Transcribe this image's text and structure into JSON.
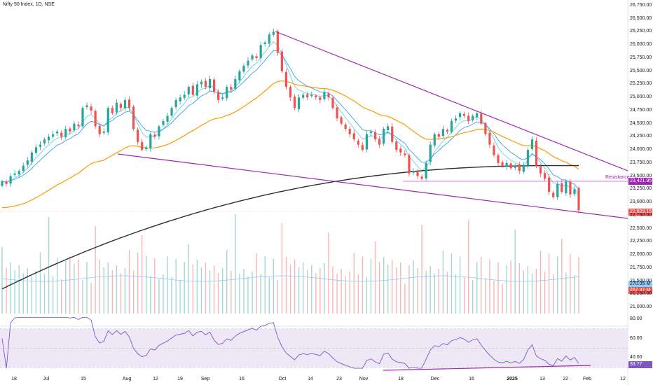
{
  "header": {
    "title": "Nifty 50 Index, 1D, NSE"
  },
  "labels": {
    "resistance": "Resistance"
  },
  "price_tags": {
    "resistance": "23,421.95",
    "last": "22,829.15",
    "vol_ma": "270.05 M",
    "vol": "257.37 M",
    "rsi": "33.77"
  },
  "colors": {
    "up": "#26a69a",
    "down": "#ef5350",
    "trend": "#9c27b0",
    "ema_fast": "#2196f3",
    "ema_slow": "#ff9800",
    "sma200": "#2a2e39",
    "rsi": "#7e57c2",
    "rsi_band": "#ede7f6",
    "resistance": "#e040fb"
  },
  "chart_data": [
    {
      "type": "candlestick",
      "title": "Nifty 50 Index, 1D, NSE",
      "y_ticks": [
        "26,750.00",
        "26,500.00",
        "26,250.00",
        "26,000.00",
        "25,750.00",
        "25,500.00",
        "25,250.00",
        "25,000.00",
        "24,750.00",
        "24,500.00",
        "24,250.00",
        "24,000.00",
        "23,750.00",
        "23,500.00",
        "23,250.00",
        "23,000.00",
        "22,750.00",
        "22,500.00",
        "22,250.00",
        "22,000.00",
        "21,750.00",
        "21,500.00",
        "21,250.00",
        "21,000.00"
      ],
      "x_ticks": [
        "18",
        "Jul",
        "15",
        "Aug",
        "12",
        "19",
        "Sep",
        "16",
        "Oct",
        "14",
        "23",
        "Nov",
        "18",
        "Dec",
        "16",
        "2025",
        "13",
        "22",
        "Feb",
        "12"
      ],
      "ylim": [
        20850,
        26900
      ],
      "closes_approx": [
        23400,
        23350,
        23500,
        23550,
        23600,
        23700,
        23800,
        23950,
        24050,
        24100,
        24200,
        24250,
        24300,
        24350,
        24250,
        24400,
        24350,
        24500,
        24450,
        24800,
        24850,
        24750,
        24450,
        24300,
        24350,
        24800,
        24700,
        24900,
        24800,
        24950,
        24800,
        24400,
        24150,
        24000,
        24050,
        24300,
        24250,
        24450,
        24550,
        24650,
        24800,
        24950,
        25000,
        25050,
        25200,
        25050,
        25250,
        25300,
        25200,
        25350,
        25100,
        24950,
        25000,
        25200,
        25150,
        25350,
        25500,
        25600,
        25700,
        25800,
        25750,
        26000,
        26050,
        26200,
        26250,
        25850,
        25500,
        25200,
        25000,
        24800,
        25000,
        25050,
        25000,
        25050,
        25000,
        24950,
        25100,
        25000,
        24800,
        24600,
        24500,
        24400,
        24300,
        24200,
        24100,
        24000,
        24300,
        24350,
        24200,
        24100,
        24400,
        24450,
        24150,
        24000,
        23950,
        23900,
        23550,
        23600,
        23500,
        23450,
        23750,
        24100,
        24300,
        24250,
        24400,
        24350,
        24550,
        24600,
        24700,
        24650,
        24550,
        24650,
        24700,
        24500,
        24300,
        24100,
        23900,
        23750,
        23700,
        23750,
        23650,
        23700,
        23600,
        23700,
        24000,
        24200,
        23700,
        23550,
        23450,
        23200,
        23100,
        23350,
        23200,
        23400,
        23150,
        23250,
        22850
      ],
      "series": [
        {
          "name": "",
          "type": "line",
          "note_values": "EMA fast",
          "values": []
        }
      ],
      "resistance_level": 23421.95,
      "last_price": 22829.15
    },
    {
      "type": "bar",
      "title": "",
      "values_m": [],
      "last_values": [
        "270.05 M",
        "257.37 M"
      ]
    },
    {
      "type": "line",
      "title": "",
      "y_ticks": [
        "80.00",
        "60.00",
        "40.00"
      ],
      "ylim": [
        28,
        84
      ],
      "band": [
        30,
        70
      ],
      "last_value": 33.77
    }
  ]
}
